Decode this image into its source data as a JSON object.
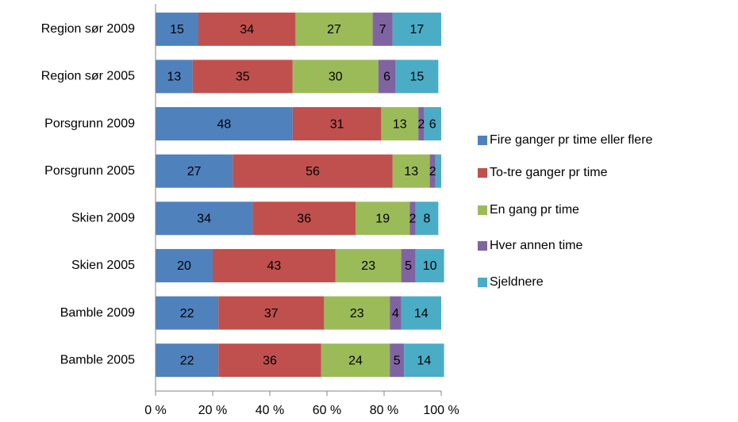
{
  "chart_data": {
    "type": "stacked_barh",
    "categories": [
      "Region sør 2009",
      "Region sør 2005",
      "Porsgrunn 2009",
      "Porsgrunn 2005",
      "Skien 2009",
      "Skien 2005",
      "Bamble 2009",
      "Bamble 2005"
    ],
    "series": [
      {
        "name": "Fire ganger pr time eller flere",
        "color": "#4f81bd",
        "values": [
          15,
          13,
          48,
          27,
          34,
          20,
          22,
          22
        ]
      },
      {
        "name": "To-tre ganger pr time",
        "color": "#c0504d",
        "values": [
          34,
          35,
          31,
          56,
          36,
          43,
          37,
          36
        ]
      },
      {
        "name": "En gang pr time",
        "color": "#9bbb59",
        "values": [
          27,
          30,
          13,
          13,
          19,
          23,
          23,
          24
        ]
      },
      {
        "name": "Hver annen time",
        "color": "#8064a2",
        "values": [
          7,
          6,
          2,
          2,
          2,
          5,
          4,
          5
        ]
      },
      {
        "name": "Sjeldnere",
        "color": "#4bacc6",
        "values": [
          17,
          15,
          6,
          2,
          8,
          10,
          14,
          14
        ],
        "value_labels": [
          "17",
          "15",
          "6",
          null,
          "8",
          "10",
          "14",
          "14"
        ]
      }
    ],
    "xlim": [
      0,
      100
    ],
    "xticks": [
      {
        "value": 0,
        "label": "0 %"
      },
      {
        "value": 20,
        "label": "20 %"
      },
      {
        "value": 40,
        "label": "40 %"
      },
      {
        "value": 60,
        "label": "60 %"
      },
      {
        "value": 80,
        "label": "80 %"
      },
      {
        "value": 100,
        "label": "100 %"
      }
    ],
    "legend": "right"
  }
}
